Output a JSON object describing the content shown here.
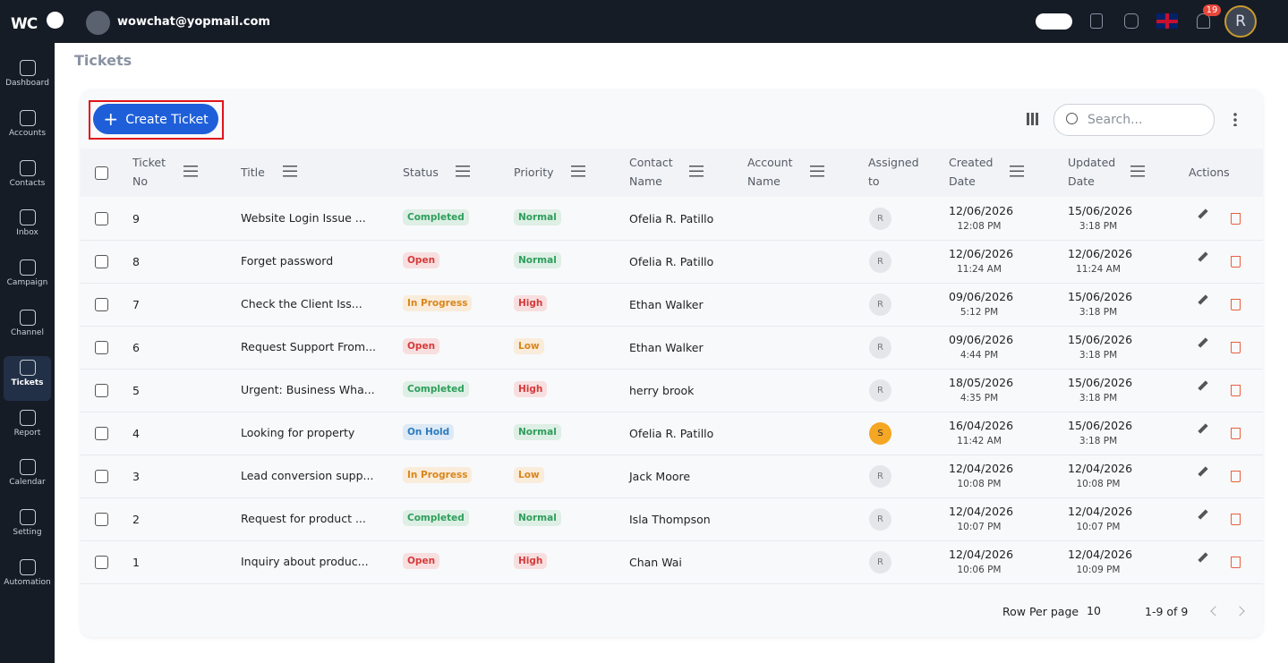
{
  "header": {
    "logo": "WC",
    "email": "wowchat@yopmail.com",
    "notification_count": "19",
    "avatar": "R"
  },
  "sidebar": {
    "active": 6,
    "items": [
      "Dashboard",
      "Accounts",
      "Contacts",
      "Inbox",
      "Campaign",
      "Channel",
      "Tickets",
      "Report",
      "Calendar",
      "Setting",
      "Automation"
    ]
  },
  "page_title": "Tickets",
  "toolbar": {
    "create_button": "Create Ticket",
    "search_placeholder": "Search..."
  },
  "table": {
    "columns": [
      {
        "label": "Ticket No",
        "filter": true
      },
      {
        "label": "Title",
        "filter": true
      },
      {
        "label": "Status",
        "filter": true
      },
      {
        "label": "Priority",
        "filter": true
      },
      {
        "label": "Contact Name",
        "filter": true
      },
      {
        "label": "Account Name",
        "filter": true
      },
      {
        "label": "Assigned to",
        "filter": false
      },
      {
        "label": "Created Date",
        "filter": true
      },
      {
        "label": "Updated Date",
        "filter": true
      },
      {
        "label": "Actions",
        "filter": false
      }
    ],
    "rows": [
      {
        "no": 9,
        "title": "Website Login Issue ...",
        "status": "Completed",
        "status_color": "#2e9e5b",
        "priority": "Normal",
        "priority_color": "#2e9e5b",
        "contact": "Ofelia R. Patillo",
        "assigned": "R",
        "assigned_color": "#e4e6ea",
        "created_date": "12/06/2026",
        "created_time": "12:08 PM",
        "updated_date": "15/06/2026",
        "updated_time": "3:18 PM"
      },
      {
        "no": 8,
        "title": "Forget password",
        "status": "Open",
        "status_color": "#d63a3a",
        "priority": "Normal",
        "priority_color": "#2e9e5b",
        "contact": "Ofelia R. Patillo",
        "assigned": "R",
        "assigned_color": "#e4e6ea",
        "created_date": "12/06/2026",
        "created_time": "11:24 AM",
        "updated_date": "12/06/2026",
        "updated_time": "11:24 AM"
      },
      {
        "no": 7,
        "title": "Check the Client Iss...",
        "status": "In Progress",
        "status_color": "#d9861c",
        "priority": "High",
        "priority_color": "#d63a3a",
        "contact": "Ethan Walker",
        "assigned": "R",
        "assigned_color": "#e4e6ea",
        "created_date": "09/06/2026",
        "created_time": "5:12 PM",
        "updated_date": "15/06/2026",
        "updated_time": "3:18 PM"
      },
      {
        "no": 6,
        "title": "Request Support From...",
        "status": "Open",
        "status_color": "#d63a3a",
        "priority": "Low",
        "priority_color": "#d9861c",
        "contact": "Ethan Walker",
        "assigned": "R",
        "assigned_color": "#e4e6ea",
        "created_date": "09/06/2026",
        "created_time": "4:44 PM",
        "updated_date": "15/06/2026",
        "updated_time": "3:18 PM"
      },
      {
        "no": 5,
        "title": "Urgent: Business Wha...",
        "status": "Completed",
        "status_color": "#2e9e5b",
        "priority": "High",
        "priority_color": "#d63a3a",
        "contact": "herry brook",
        "assigned": "R",
        "assigned_color": "#e4e6ea",
        "created_date": "18/05/2026",
        "created_time": "4:35 PM",
        "updated_date": "15/06/2026",
        "updated_time": "3:18 PM"
      },
      {
        "no": 4,
        "title": "Looking for property",
        "status": "On Hold",
        "status_color": "#2b7bc0",
        "priority": "Normal",
        "priority_color": "#2e9e5b",
        "contact": "Ofelia R. Patillo",
        "assigned": "S",
        "assigned_color": "#f5a623",
        "created_date": "16/04/2026",
        "created_time": "11:42 AM",
        "updated_date": "15/06/2026",
        "updated_time": "3:18 PM"
      },
      {
        "no": 3,
        "title": "Lead conversion supp...",
        "status": "In Progress",
        "status_color": "#d9861c",
        "priority": "Low",
        "priority_color": "#d9861c",
        "contact": "Jack Moore",
        "assigned": "R",
        "assigned_color": "#e4e6ea",
        "created_date": "12/04/2026",
        "created_time": "10:08 PM",
        "updated_date": "12/04/2026",
        "updated_time": "10:08 PM"
      },
      {
        "no": 2,
        "title": "Request for product ...",
        "status": "Completed",
        "status_color": "#2e9e5b",
        "priority": "Normal",
        "priority_color": "#2e9e5b",
        "contact": "Isla Thompson",
        "assigned": "R",
        "assigned_color": "#e4e6ea",
        "created_date": "12/04/2026",
        "created_time": "10:07 PM",
        "updated_date": "12/04/2026",
        "updated_time": "10:07 PM"
      },
      {
        "no": 1,
        "title": "Inquiry about produc...",
        "status": "Open",
        "status_color": "#d63a3a",
        "priority": "High",
        "priority_color": "#d63a3a",
        "contact": "Chan Wai",
        "assigned": "R",
        "assigned_color": "#e4e6ea",
        "created_date": "12/04/2026",
        "created_time": "10:06 PM",
        "updated_date": "12/04/2026",
        "updated_time": "10:09 PM"
      }
    ]
  },
  "pagination": {
    "rows_per_page_label": "Row Per page",
    "rows_per_page": "10",
    "range": "1-9 of 9"
  }
}
